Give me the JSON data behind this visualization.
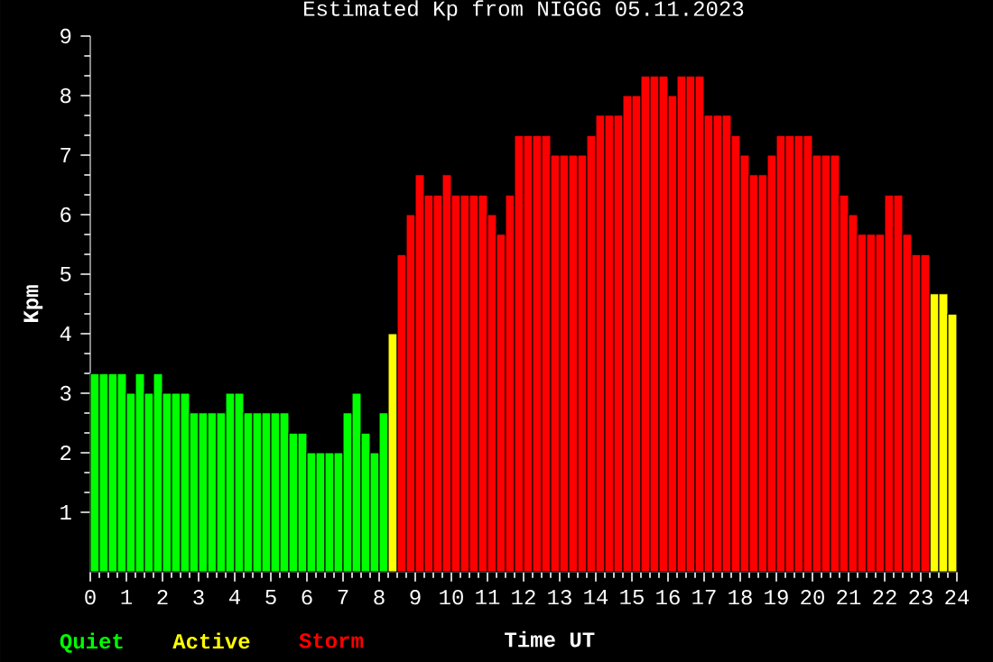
{
  "chart_data": {
    "type": "bar",
    "title": "Estimated Kp from NIGGG 05.11.2023",
    "xlabel": "Time UT",
    "ylabel": "Kpm",
    "x": [
      0.125,
      0.375,
      0.625,
      0.875,
      1.125,
      1.375,
      1.625,
      1.875,
      2.125,
      2.375,
      2.625,
      2.875,
      3.125,
      3.375,
      3.625,
      3.875,
      4.125,
      4.375,
      4.625,
      4.875,
      5.125,
      5.375,
      5.625,
      5.875,
      6.125,
      6.375,
      6.625,
      6.875,
      7.125,
      7.375,
      7.625,
      7.875,
      8.125,
      8.375,
      8.625,
      8.875,
      9.125,
      9.375,
      9.625,
      9.875,
      10.125,
      10.375,
      10.625,
      10.875,
      11.125,
      11.375,
      11.625,
      11.875,
      12.125,
      12.375,
      12.625,
      12.875,
      13.125,
      13.375,
      13.625,
      13.875,
      14.125,
      14.375,
      14.625,
      14.875,
      15.125,
      15.375,
      15.625,
      15.875,
      16.125,
      16.375,
      16.625,
      16.875,
      17.125,
      17.375,
      17.625,
      17.875,
      18.125,
      18.375,
      18.625,
      18.875,
      19.125,
      19.375,
      19.625,
      19.875,
      20.125,
      20.375,
      20.625,
      20.875,
      21.125,
      21.375,
      21.625,
      21.875,
      22.125,
      22.375,
      22.625,
      22.875,
      23.125,
      23.375,
      23.625,
      23.875
    ],
    "series": [
      {
        "name": "Quiet",
        "color": "#00ff00",
        "values": [
          3.33,
          3.33,
          3.33,
          3.33,
          3,
          3.33,
          3,
          3.33,
          3,
          3,
          3,
          2.67,
          2.67,
          2.67,
          2.67,
          3,
          3,
          2.67,
          2.67,
          2.67,
          2.67,
          2.67,
          2.33,
          2.33,
          2,
          2,
          2,
          2,
          2.67,
          3,
          2.33,
          2,
          2.67,
          null,
          null,
          null,
          null,
          null,
          null,
          null,
          null,
          null,
          null,
          null,
          null,
          null,
          null,
          null,
          null,
          null,
          null,
          null,
          null,
          null,
          null,
          null,
          null,
          null,
          null,
          null,
          null,
          null,
          null,
          null,
          null,
          null,
          null,
          null,
          null,
          null,
          null,
          null,
          null,
          null,
          null,
          null,
          null,
          null,
          null,
          null,
          null,
          null,
          null,
          null,
          null,
          null,
          null,
          null,
          null,
          null,
          null,
          null,
          null,
          null,
          null,
          null
        ]
      },
      {
        "name": "Active",
        "color": "#ffff00",
        "values": [
          null,
          null,
          null,
          null,
          null,
          null,
          null,
          null,
          null,
          null,
          null,
          null,
          null,
          null,
          null,
          null,
          null,
          null,
          null,
          null,
          null,
          null,
          null,
          null,
          null,
          null,
          null,
          null,
          null,
          null,
          null,
          null,
          null,
          4,
          null,
          null,
          null,
          null,
          null,
          null,
          null,
          null,
          null,
          null,
          null,
          null,
          null,
          null,
          null,
          null,
          null,
          null,
          null,
          null,
          null,
          null,
          null,
          null,
          null,
          null,
          null,
          null,
          null,
          null,
          null,
          null,
          null,
          null,
          null,
          null,
          null,
          null,
          null,
          null,
          null,
          null,
          null,
          null,
          null,
          null,
          null,
          null,
          null,
          null,
          null,
          null,
          null,
          null,
          null,
          null,
          null,
          null,
          null,
          4.67,
          4.67,
          4.33
        ]
      },
      {
        "name": "Storm",
        "color": "#ff0000",
        "values": [
          null,
          null,
          null,
          null,
          null,
          null,
          null,
          null,
          null,
          null,
          null,
          null,
          null,
          null,
          null,
          null,
          null,
          null,
          null,
          null,
          null,
          null,
          null,
          null,
          null,
          null,
          null,
          null,
          null,
          null,
          null,
          null,
          null,
          null,
          5.33,
          6,
          6.67,
          6.33,
          6.33,
          6.67,
          6.33,
          6.33,
          6.33,
          6.33,
          6,
          5.67,
          6.33,
          7.33,
          7.33,
          7.33,
          7.33,
          7,
          7,
          7,
          7,
          7.33,
          7.67,
          7.67,
          7.67,
          8,
          8,
          8.33,
          8.33,
          8.33,
          8,
          8.33,
          8.33,
          8.33,
          7.67,
          7.67,
          7.67,
          7.33,
          7,
          6.67,
          6.67,
          7,
          7.33,
          7.33,
          7.33,
          7.33,
          7,
          7,
          7,
          6.33,
          6,
          5.67,
          5.67,
          5.67,
          6.33,
          6.33,
          5.67,
          5.33,
          5.33,
          null,
          null,
          null
        ]
      }
    ],
    "xlim": [
      0,
      24
    ],
    "xticks": [
      0,
      1,
      2,
      3,
      4,
      5,
      6,
      7,
      8,
      9,
      10,
      11,
      12,
      13,
      14,
      15,
      16,
      17,
      18,
      19,
      20,
      21,
      22,
      23,
      24
    ],
    "ylim": [
      0,
      9
    ],
    "yticks": [
      1,
      2,
      3,
      4,
      5,
      6,
      7,
      8,
      9
    ],
    "legend": "bottom left"
  }
}
